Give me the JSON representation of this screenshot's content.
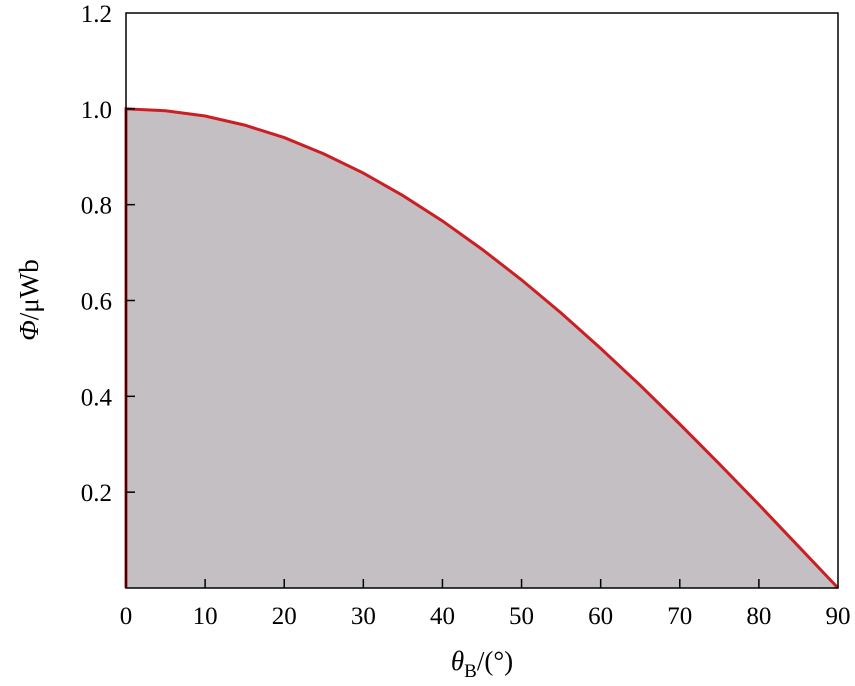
{
  "chart_data": {
    "type": "area",
    "x": [
      0,
      5,
      10,
      15,
      20,
      25,
      30,
      35,
      40,
      45,
      50,
      55,
      60,
      65,
      70,
      75,
      80,
      85,
      90
    ],
    "series": [
      {
        "values": [
          1.0,
          0.996,
          0.985,
          0.966,
          0.94,
          0.906,
          0.866,
          0.819,
          0.766,
          0.707,
          0.643,
          0.574,
          0.5,
          0.423,
          0.342,
          0.259,
          0.174,
          0.087,
          0.0
        ]
      }
    ],
    "xlim": [
      0,
      90
    ],
    "ylim": [
      0,
      1.2
    ],
    "xticks": [
      0,
      10,
      20,
      30,
      40,
      50,
      60,
      70,
      80,
      90
    ],
    "yticks": [
      0.2,
      0.4,
      0.6,
      0.8,
      1.0,
      1.2
    ],
    "xtick_labels": [
      "0",
      "10",
      "20",
      "30",
      "40",
      "50",
      "60",
      "70",
      "80",
      "90"
    ],
    "ytick_labels": [
      "0.2",
      "0.4",
      "0.6",
      "0.8",
      "1.0",
      "1.2"
    ],
    "xlabel_var": "θ",
    "xlabel_sub": "B",
    "xlabel_unit": "/(°)",
    "ylabel_var": "Φ",
    "ylabel_unit": "/μWb",
    "grid": false,
    "colors": {
      "line": "#cc1f24",
      "fill": "#c4bfc3",
      "axis": "#000000"
    }
  }
}
